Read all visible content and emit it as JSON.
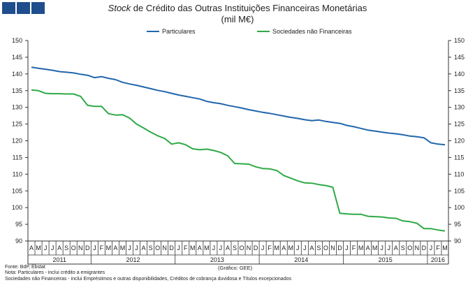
{
  "brand": {
    "logo_color": "#1f4e8c"
  },
  "header": {
    "title_italic": "Stock",
    "title_rest": " de Crédito das Outras Instituições Financeiras Monetárias",
    "subtitle": "(mil M€)"
  },
  "footer": {
    "source": "Fonte: BdP, Ebstat",
    "note1": "Nota: Particulares - inclui crédito a emigrantes",
    "note2": "Sociedades não Financeiras - inclui Empréstimos e outras disponibilidades, Créditos de cobrança duvidosa e Títulos excepcionados",
    "credit": "(Gráfico: GEE)"
  },
  "chart_data": {
    "type": "line",
    "title": "Stock de Crédito das Outras Instituições Financeiras Monetárias (mil M€)",
    "xlabel": "",
    "ylabel": "",
    "ylim": [
      90,
      150
    ],
    "yticks": [
      90,
      95,
      100,
      105,
      110,
      115,
      120,
      125,
      130,
      135,
      140,
      145,
      150
    ],
    "grid": false,
    "legend_position": "top",
    "month_labels": [
      "A",
      "M",
      "J",
      "J",
      "A",
      "S",
      "O",
      "N",
      "D",
      "J",
      "F",
      "M",
      "A",
      "M",
      "J",
      "J",
      "A",
      "S",
      "O",
      "N",
      "D",
      "J",
      "F",
      "M",
      "A",
      "M",
      "J",
      "J",
      "A",
      "S",
      "O",
      "N",
      "D",
      "J",
      "F",
      "M",
      "A",
      "M",
      "J",
      "J",
      "A",
      "S",
      "O",
      "N",
      "D",
      "J",
      "F",
      "M",
      "A",
      "M",
      "J",
      "J",
      "A",
      "S",
      "O",
      "N",
      "D",
      "J",
      "F",
      "M"
    ],
    "year_labels": [
      {
        "label": "2011",
        "start": 0,
        "end": 8
      },
      {
        "label": "2012",
        "start": 9,
        "end": 20
      },
      {
        "label": "2013",
        "start": 21,
        "end": 32
      },
      {
        "label": "2014",
        "start": 33,
        "end": 44
      },
      {
        "label": "2015",
        "start": 45,
        "end": 56
      },
      {
        "label": "2016",
        "start": 57,
        "end": 59
      }
    ],
    "series": [
      {
        "name": "Particulares",
        "color": "#2166ac",
        "values": [
          142.0,
          141.7,
          141.4,
          141.1,
          140.7,
          140.5,
          140.3,
          139.9,
          139.6,
          138.9,
          139.2,
          138.7,
          138.3,
          137.5,
          137.0,
          136.6,
          136.1,
          135.6,
          135.1,
          134.7,
          134.2,
          133.7,
          133.3,
          132.9,
          132.5,
          131.8,
          131.4,
          131.1,
          130.6,
          130.2,
          129.8,
          129.3,
          128.9,
          128.5,
          128.2,
          127.8,
          127.4,
          127.0,
          126.7,
          126.3,
          126.0,
          126.2,
          125.8,
          125.5,
          125.2,
          124.6,
          124.2,
          123.7,
          123.2,
          122.9,
          122.6,
          122.3,
          122.1,
          121.8,
          121.4,
          121.2,
          120.9,
          119.4,
          119.0,
          118.8
        ]
      },
      {
        "name": "Sociedades não Financeiras",
        "color": "#2eaa46",
        "values": [
          135.2,
          135.0,
          134.2,
          134.1,
          134.1,
          134.0,
          134.0,
          133.3,
          130.6,
          130.3,
          130.3,
          128.1,
          127.7,
          127.8,
          126.8,
          125.0,
          123.8,
          122.6,
          121.5,
          120.7,
          119.0,
          119.4,
          118.8,
          117.6,
          117.3,
          117.5,
          117.1,
          116.5,
          115.5,
          113.2,
          113.1,
          113.0,
          112.2,
          111.7,
          111.6,
          111.1,
          109.6,
          108.8,
          108.0,
          107.4,
          107.3,
          106.9,
          106.6,
          106.1,
          98.3,
          98.1,
          98.0,
          98.0,
          97.4,
          97.3,
          97.2,
          96.9,
          96.8,
          96.0,
          95.8,
          95.3,
          93.7,
          93.7,
          93.3,
          93.0
        ]
      }
    ]
  }
}
